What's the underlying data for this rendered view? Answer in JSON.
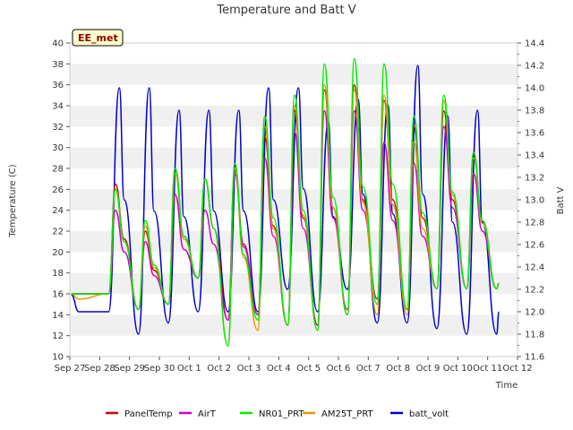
{
  "chart_data": {
    "type": "line",
    "title": "Temperature and Batt V",
    "xlabel": "Time",
    "ylabel": "Temperature (C)",
    "y2label": "Batt V",
    "badge": "EE_met",
    "ylim": [
      10,
      40
    ],
    "y2lim": [
      11.6,
      14.4
    ],
    "yticks": [
      10,
      12,
      14,
      16,
      18,
      20,
      22,
      24,
      26,
      28,
      30,
      32,
      34,
      36,
      38,
      40
    ],
    "y2ticks": [
      11.6,
      11.8,
      12.0,
      12.2,
      12.4,
      12.6,
      12.8,
      13.0,
      13.2,
      13.4,
      13.6,
      13.8,
      14.0,
      14.2,
      14.4
    ],
    "xlim": [
      0,
      15
    ],
    "xtick_labels": [
      "Sep 27",
      "Sep 28",
      "Sep 29",
      "Sep 30",
      "Oct 1",
      "Oct 2",
      "Oct 3",
      "Oct 4",
      "Oct 5",
      "Oct 6",
      "Oct 7",
      "Oct 8",
      "Oct 9",
      "Oct 10",
      "Oct 11",
      "Oct 12"
    ],
    "grid": "alternating horizontal bands",
    "legend_placement": "bottom",
    "days": [
      0,
      1,
      2,
      3,
      4,
      5,
      6,
      7,
      8,
      9,
      10,
      11,
      12,
      13,
      14
    ],
    "series": [
      {
        "name": "PanelTemp",
        "axis": "left",
        "color": "#cc0000",
        "daily_min": [
          16.0,
          16.0,
          14.5,
          15.0,
          17.5,
          13.5,
          14.0,
          13.0,
          13.0,
          14.0,
          15.5,
          14.5,
          16.5,
          16.5,
          16.5
        ],
        "daily_max": [
          null,
          26.5,
          22.0,
          28.0,
          27.0,
          28.0,
          31.0,
          33.5,
          35.5,
          36.0,
          34.5,
          32.0,
          33.5,
          29.5,
          28.0
        ],
        "start": 16.0,
        "end": 17.0
      },
      {
        "name": "AirT",
        "axis": "left",
        "color": "#cc00cc",
        "daily_min": [
          16.0,
          16.0,
          14.5,
          15.0,
          17.5,
          13.5,
          14.0,
          13.0,
          13.0,
          14.5,
          15.5,
          14.5,
          16.5,
          16.5,
          16.5
        ],
        "daily_max": [
          null,
          24.0,
          21.0,
          25.5,
          24.0,
          27.5,
          29.0,
          31.5,
          33.5,
          33.5,
          30.5,
          28.5,
          32.0,
          27.5,
          27.0
        ],
        "start": 16.0,
        "end": 17.0
      },
      {
        "name": "NR01_PRT",
        "axis": "left",
        "color": "#00ee00",
        "daily_min": [
          16.0,
          16.0,
          14.5,
          15.0,
          17.5,
          11.0,
          13.5,
          13.0,
          12.5,
          14.0,
          15.0,
          14.5,
          16.5,
          16.5,
          16.5
        ],
        "daily_max": [
          null,
          26.0,
          23.0,
          28.0,
          27.0,
          28.5,
          33.0,
          35.0,
          38.0,
          38.5,
          38.0,
          33.0,
          35.0,
          29.5,
          28.0
        ],
        "start": 16.0,
        "end": 17.0
      },
      {
        "name": "AM25T_PRT",
        "axis": "left",
        "color": "#e69900",
        "daily_min": [
          15.5,
          16.0,
          14.5,
          15.0,
          17.5,
          11.0,
          12.5,
          13.0,
          12.5,
          14.0,
          14.0,
          14.0,
          16.5,
          16.5,
          16.5
        ],
        "daily_max": [
          null,
          26.0,
          22.5,
          27.5,
          27.0,
          28.0,
          32.0,
          34.0,
          36.0,
          35.5,
          35.0,
          30.5,
          34.5,
          29.0,
          27.5
        ],
        "start": 16.0,
        "end": 17.0
      },
      {
        "name": "batt_volt",
        "axis": "right",
        "color": "#0000cc",
        "daily_min": [
          12.0,
          12.0,
          11.8,
          11.9,
          12.0,
          12.0,
          12.0,
          12.2,
          12.0,
          12.2,
          11.9,
          11.9,
          11.85,
          11.8,
          11.8
        ],
        "daily_max": [
          null,
          14.0,
          14.0,
          13.8,
          13.8,
          13.8,
          14.0,
          14.0,
          13.7,
          13.9,
          13.85,
          14.2,
          13.75,
          13.8,
          null
        ],
        "start": 12.15,
        "end": 12.0
      }
    ]
  }
}
